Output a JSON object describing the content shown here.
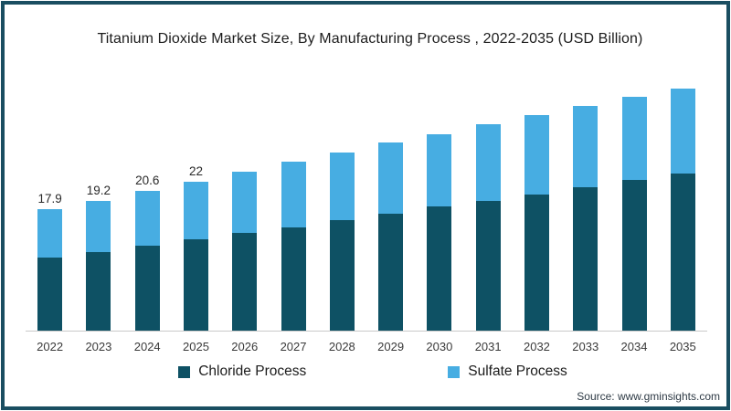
{
  "title": "Titanium Dioxide  Market Size, By Manufacturing Process , 2022-2035 (USD Billion)",
  "source": "Source: www.gminsights.com",
  "colors": {
    "chloride": "#0e5164",
    "sulfate": "#47ade2",
    "frame_border": "#1a4e61",
    "axis_line": "#c9c9c9",
    "text": "#1c1c1c"
  },
  "legend": {
    "items": [
      {
        "label": "Chloride Process",
        "color": "#0e5164"
      },
      {
        "label": "Sulfate Process",
        "color": "#47ade2"
      }
    ]
  },
  "chart_data": {
    "type": "bar",
    "stacked": true,
    "title": "Titanium Dioxide  Market Size, By Manufacturing Process , 2022-2035 (USD Billion)",
    "xlabel": "",
    "ylabel": "",
    "grid": false,
    "legend_position": "bottom",
    "axis_range_estimate": [
      0,
      36
    ],
    "categories": [
      "2022",
      "2023",
      "2024",
      "2025",
      "2026",
      "2027",
      "2028",
      "2029",
      "2030",
      "2031",
      "2032",
      "2033",
      "2034",
      "2035"
    ],
    "series": [
      {
        "name": "Chloride Process",
        "color": "#0e5164",
        "values": [
          10.8,
          11.6,
          12.5,
          13.5,
          14.4,
          15.3,
          16.3,
          17.3,
          18.3,
          19.2,
          20.1,
          21.1,
          22.2,
          23.2
        ]
      },
      {
        "name": "Sulfate Process",
        "color": "#47ade2",
        "values": [
          7.1,
          7.6,
          8.1,
          8.5,
          9.1,
          9.6,
          10.0,
          10.4,
          10.7,
          11.2,
          11.7,
          12.1,
          12.3,
          12.5
        ]
      }
    ],
    "totals": [
      17.9,
      19.2,
      20.6,
      22,
      23.5,
      24.9,
      26.3,
      27.7,
      29.0,
      30.4,
      31.8,
      33.2,
      34.5,
      35.7
    ],
    "total_labels": [
      "17.9",
      "19.2",
      "20.6",
      "22",
      "",
      "",
      "",
      "",
      "",
      "",
      "",
      "",
      "",
      ""
    ]
  }
}
